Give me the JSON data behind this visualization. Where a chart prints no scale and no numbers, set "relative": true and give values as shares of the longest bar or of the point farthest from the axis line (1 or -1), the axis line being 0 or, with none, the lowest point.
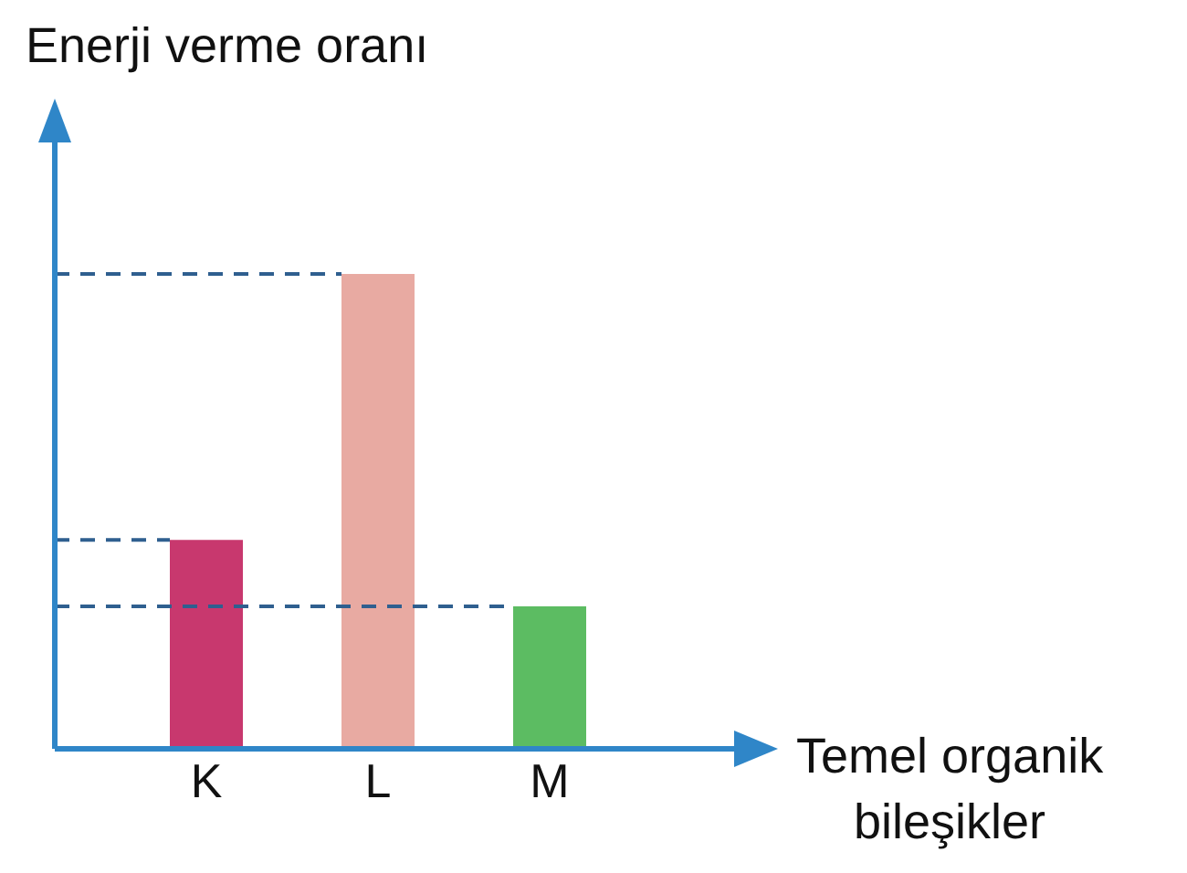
{
  "chart_data": {
    "type": "bar",
    "relative": true,
    "ylabel": "Enerji verme oranı",
    "xlabel": "Temel organik\nbileşikler",
    "categories": [
      "K",
      "L",
      "M"
    ],
    "values": [
      0.44,
      1,
      0.3
    ],
    "colors": [
      "#c8386e",
      "#e8aaa2",
      "#5cbc62"
    ],
    "ref_lines": [
      {
        "axis": "y",
        "value": 0.44,
        "line_style": "dashed",
        "color": "#2f5f8f"
      },
      {
        "axis": "y",
        "value": 1,
        "line_style": "dashed",
        "color": "#2f5f8f"
      },
      {
        "axis": "y",
        "value": 0.3,
        "line_style": "dashed",
        "color": "#2f5f8f"
      }
    ],
    "grid": false,
    "legend": false
  }
}
